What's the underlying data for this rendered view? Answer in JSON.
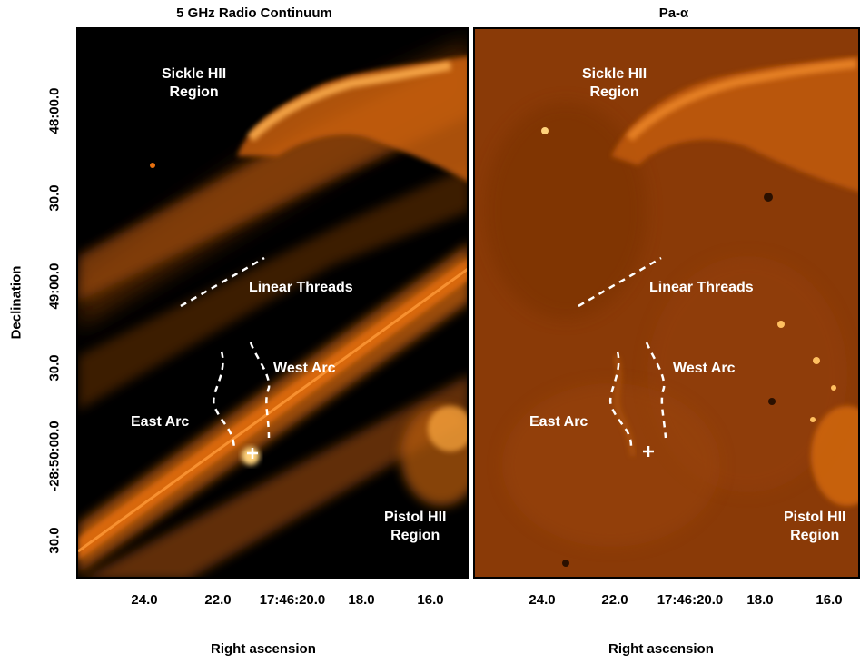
{
  "panels": {
    "radio": {
      "title": "5 GHz Radio Continuum",
      "labels": {
        "sickle": [
          "Sickle HII",
          "Region"
        ],
        "threads": "Linear Threads",
        "west_arc": "West Arc",
        "east_arc": "East Arc",
        "pistol": [
          "Pistol HII",
          "Region"
        ]
      }
    },
    "paa": {
      "title": "Pa-α",
      "labels": {
        "sickle": [
          "Sickle HII",
          "Region"
        ],
        "threads": "Linear Threads",
        "west_arc": "West Arc",
        "east_arc": "East Arc",
        "pistol": [
          "Pistol HII",
          "Region"
        ]
      }
    }
  },
  "axes": {
    "x_ticks": [
      "24.0",
      "22.0",
      "17:46:20.0",
      "18.0",
      "16.0"
    ],
    "y_ticks": [
      "48:00.0",
      "30.0",
      "49:00.0",
      "30.0",
      "-28:50:00.0",
      "30.0"
    ],
    "x_title": "Right ascension",
    "y_title": "Declination"
  },
  "colors": {
    "radio_background": "#000000",
    "paa_background": "#8a3a07",
    "emission": "#e8700f",
    "bright": "#ffd27a"
  }
}
